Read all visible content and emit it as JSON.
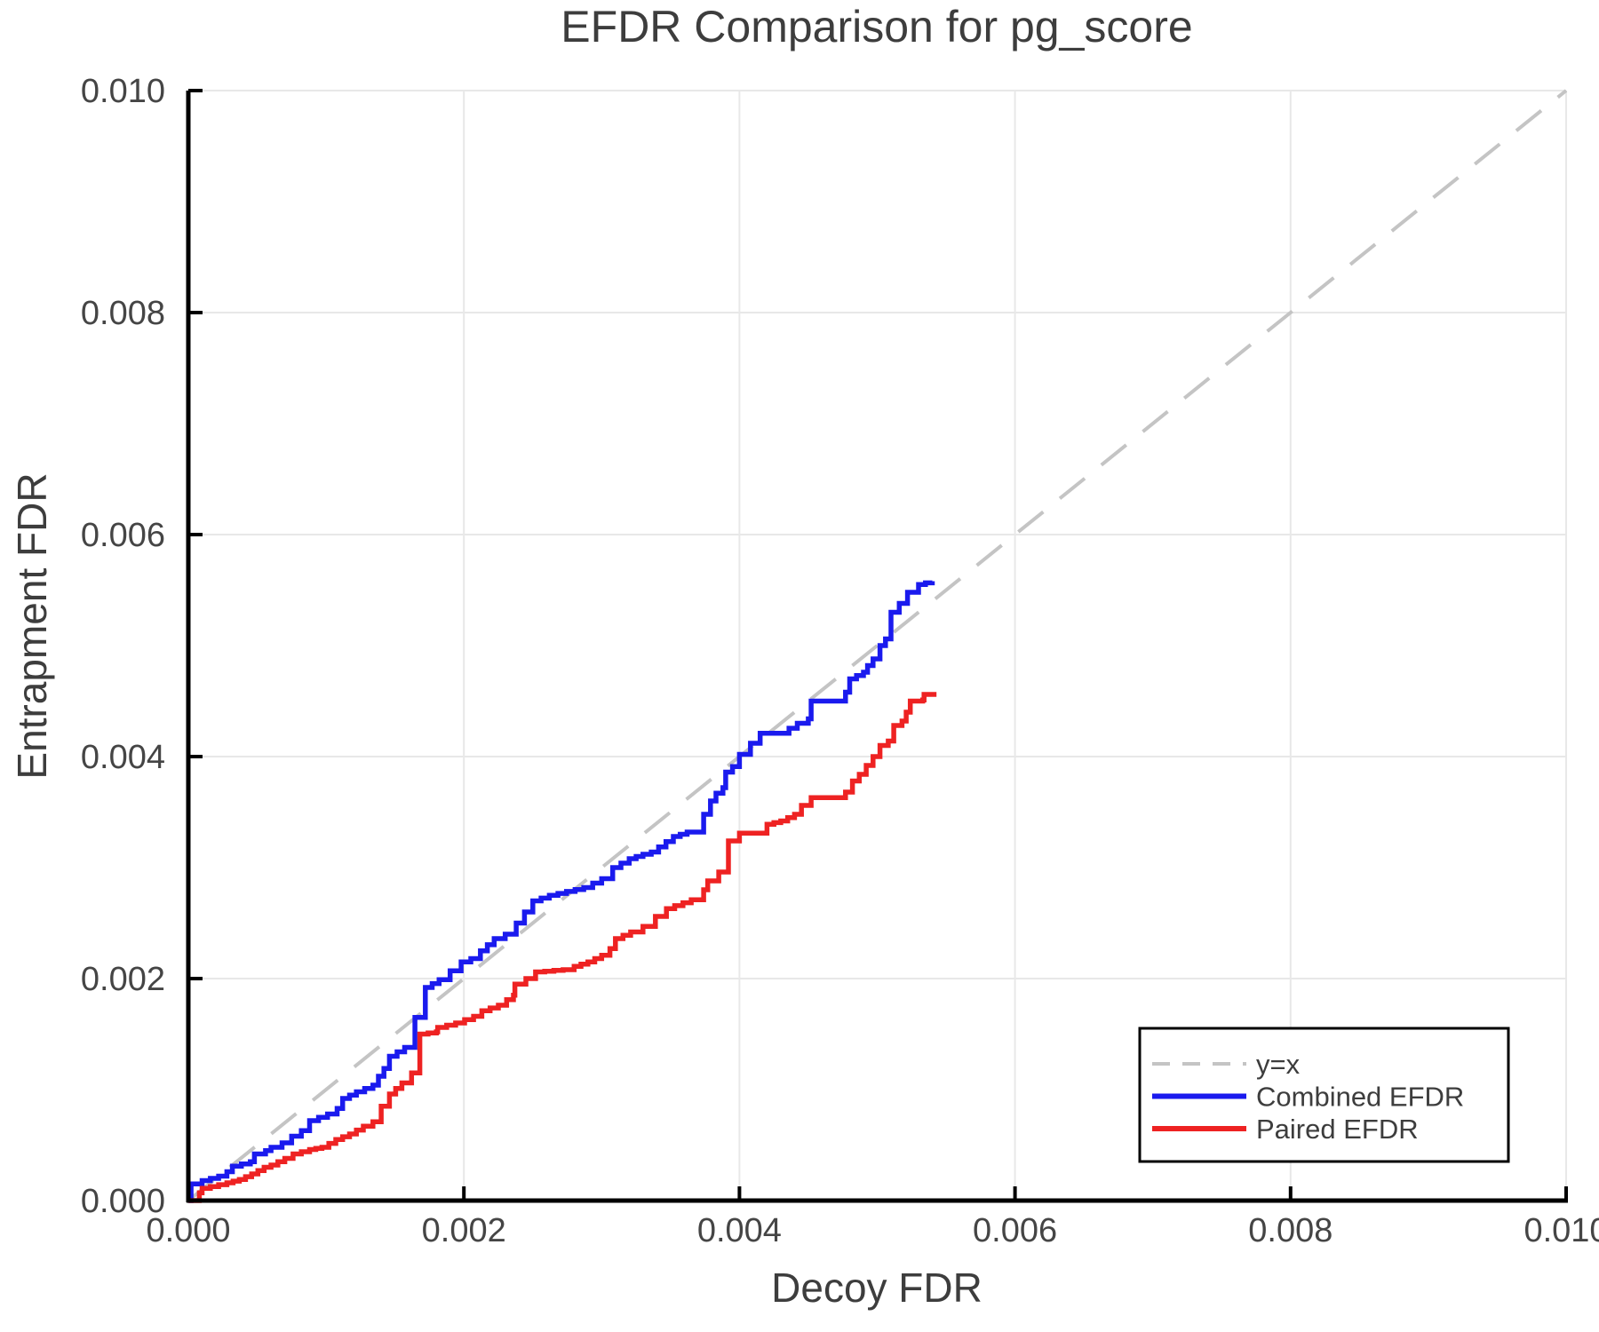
{
  "chart_data": {
    "type": "line",
    "title": "EFDR Comparison for pg_score",
    "xlabel": "Decoy FDR",
    "ylabel": "Entrapment FDR",
    "xlim": [
      0.0,
      0.01
    ],
    "ylim": [
      0.0,
      0.01
    ],
    "grid": true,
    "grid_color": "#e8e8e8",
    "legend_position": "lower right",
    "xticks": {
      "values": [
        0.0,
        0.002,
        0.004,
        0.006,
        0.008,
        0.01
      ],
      "labels": [
        "0.000",
        "0.002",
        "0.004",
        "0.006",
        "0.008",
        "0.010"
      ]
    },
    "yticks": {
      "values": [
        0.0,
        0.002,
        0.004,
        0.006,
        0.008,
        0.01
      ],
      "labels": [
        "0.000",
        "0.002",
        "0.004",
        "0.006",
        "0.008",
        "0.010"
      ]
    },
    "reference_line": {
      "label": "y=x",
      "style": "dashed",
      "color": "#c4c4c4",
      "from": [
        0.0,
        0.0
      ],
      "to": [
        0.01,
        0.01
      ]
    },
    "series": [
      {
        "name": "Combined EFDR",
        "color": "#1a1aee",
        "step": true,
        "points": [
          [
            0.0,
            0.0
          ],
          [
            2e-05,
            0.00015
          ],
          [
            0.0001,
            0.00018
          ],
          [
            0.00022,
            0.00022
          ],
          [
            0.00028,
            0.00026
          ],
          [
            0.00032,
            0.00031
          ],
          [
            0.00045,
            0.00035
          ],
          [
            0.00048,
            0.00042
          ],
          [
            0.00056,
            0.00045
          ],
          [
            0.0006,
            0.00048
          ],
          [
            0.00068,
            0.00052
          ],
          [
            0.00075,
            0.00058
          ],
          [
            0.00082,
            0.00063
          ],
          [
            0.00088,
            0.00072
          ],
          [
            0.00101,
            0.00078
          ],
          [
            0.00108,
            0.00083
          ],
          [
            0.00112,
            0.00092
          ],
          [
            0.00122,
            0.00098
          ],
          [
            0.00134,
            0.00104
          ],
          [
            0.00138,
            0.00112
          ],
          [
            0.00142,
            0.00119
          ],
          [
            0.00146,
            0.0013
          ],
          [
            0.00157,
            0.00138
          ],
          [
            0.00172,
            0.00192
          ],
          [
            0.00182,
            0.00199
          ],
          [
            0.0019,
            0.00207
          ],
          [
            0.00198,
            0.00215
          ],
          [
            0.00205,
            0.00218
          ],
          [
            0.00212,
            0.00225
          ],
          [
            0.00222,
            0.00236
          ],
          [
            0.0023,
            0.0024
          ],
          [
            0.00238,
            0.0025
          ],
          [
            0.0025,
            0.0027
          ],
          [
            0.00262,
            0.00275
          ],
          [
            0.00287,
            0.00282
          ],
          [
            0.003,
            0.0029
          ],
          [
            0.00308,
            0.003
          ],
          [
            0.0032,
            0.00308
          ],
          [
            0.0033,
            0.00312
          ],
          [
            0.00336,
            0.00314
          ],
          [
            0.00352,
            0.00328
          ],
          [
            0.00362,
            0.00332
          ],
          [
            0.00371,
            0.00332
          ],
          [
            0.00374,
            0.00348
          ],
          [
            0.00379,
            0.0036
          ],
          [
            0.00383,
            0.00367
          ],
          [
            0.00388,
            0.00372
          ],
          [
            0.0039,
            0.00386
          ],
          [
            0.00395,
            0.00391
          ],
          [
            0.004,
            0.00402
          ],
          [
            0.00408,
            0.00412
          ],
          [
            0.00415,
            0.00421
          ],
          [
            0.0043,
            0.00421
          ],
          [
            0.00442,
            0.0043
          ],
          [
            0.0045,
            0.00434
          ],
          [
            0.00452,
            0.0045
          ],
          [
            0.00472,
            0.0045
          ],
          [
            0.00477,
            0.00458
          ],
          [
            0.0048,
            0.0047
          ],
          [
            0.0049,
            0.00476
          ],
          [
            0.00493,
            0.00482
          ],
          [
            0.00497,
            0.00488
          ],
          [
            0.00502,
            0.005
          ],
          [
            0.00506,
            0.00506
          ],
          [
            0.0051,
            0.0053
          ],
          [
            0.00516,
            0.00538
          ],
          [
            0.00522,
            0.00548
          ],
          [
            0.0053,
            0.00555
          ],
          [
            0.0054,
            0.00558
          ]
        ]
      },
      {
        "name": "Paired EFDR",
        "color": "#ee2222",
        "step": true,
        "points": [
          [
            0.0,
            0.0
          ],
          [
            8e-05,
            7e-05
          ],
          [
            0.0001,
            0.00011
          ],
          [
            0.00028,
            0.00016
          ],
          [
            0.00037,
            0.00019
          ],
          [
            0.00046,
            0.00024
          ],
          [
            0.00055,
            0.0003
          ],
          [
            0.0006,
            0.00032
          ],
          [
            0.0007,
            0.00038
          ],
          [
            0.00076,
            0.00042
          ],
          [
            0.00088,
            0.00046
          ],
          [
            0.00097,
            0.00048
          ],
          [
            0.00107,
            0.00055
          ],
          [
            0.00117,
            0.0006
          ],
          [
            0.00127,
            0.00067
          ],
          [
            0.00134,
            0.00071
          ],
          [
            0.0014,
            0.00085
          ],
          [
            0.00146,
            0.00096
          ],
          [
            0.00155,
            0.00106
          ],
          [
            0.00162,
            0.00115
          ],
          [
            0.00168,
            0.0015
          ],
          [
            0.0018,
            0.00152
          ],
          [
            0.00181,
            0.00156
          ],
          [
            0.00194,
            0.0016
          ],
          [
            0.00207,
            0.00166
          ],
          [
            0.00213,
            0.00171
          ],
          [
            0.00225,
            0.00176
          ],
          [
            0.00231,
            0.00181
          ],
          [
            0.00236,
            0.00185
          ],
          [
            0.00237,
            0.00195
          ],
          [
            0.00245,
            0.002
          ],
          [
            0.00252,
            0.00206
          ],
          [
            0.00272,
            0.00208
          ],
          [
            0.0028,
            0.00211
          ],
          [
            0.0029,
            0.00215
          ],
          [
            0.003,
            0.00221
          ],
          [
            0.00306,
            0.00227
          ],
          [
            0.0031,
            0.00236
          ],
          [
            0.00321,
            0.00242
          ],
          [
            0.0033,
            0.00247
          ],
          [
            0.00339,
            0.00256
          ],
          [
            0.00347,
            0.00263
          ],
          [
            0.00365,
            0.00271
          ],
          [
            0.00374,
            0.0028
          ],
          [
            0.00377,
            0.00288
          ],
          [
            0.00385,
            0.00296
          ],
          [
            0.00392,
            0.00324
          ],
          [
            0.004,
            0.00331
          ],
          [
            0.00416,
            0.00331
          ],
          [
            0.0042,
            0.00339
          ],
          [
            0.0043,
            0.00342
          ],
          [
            0.0044,
            0.00348
          ],
          [
            0.00445,
            0.00356
          ],
          [
            0.00452,
            0.00363
          ],
          [
            0.00472,
            0.00363
          ],
          [
            0.00477,
            0.00368
          ],
          [
            0.00482,
            0.00378
          ],
          [
            0.00487,
            0.00384
          ],
          [
            0.00492,
            0.00392
          ],
          [
            0.00497,
            0.004
          ],
          [
            0.00502,
            0.0041
          ],
          [
            0.00508,
            0.00414
          ],
          [
            0.00512,
            0.00428
          ],
          [
            0.00518,
            0.00432
          ],
          [
            0.00521,
            0.0044
          ],
          [
            0.00524,
            0.0045
          ],
          [
            0.00533,
            0.00451
          ],
          [
            0.00534,
            0.00456
          ],
          [
            0.00543,
            0.00456
          ]
        ]
      }
    ]
  }
}
